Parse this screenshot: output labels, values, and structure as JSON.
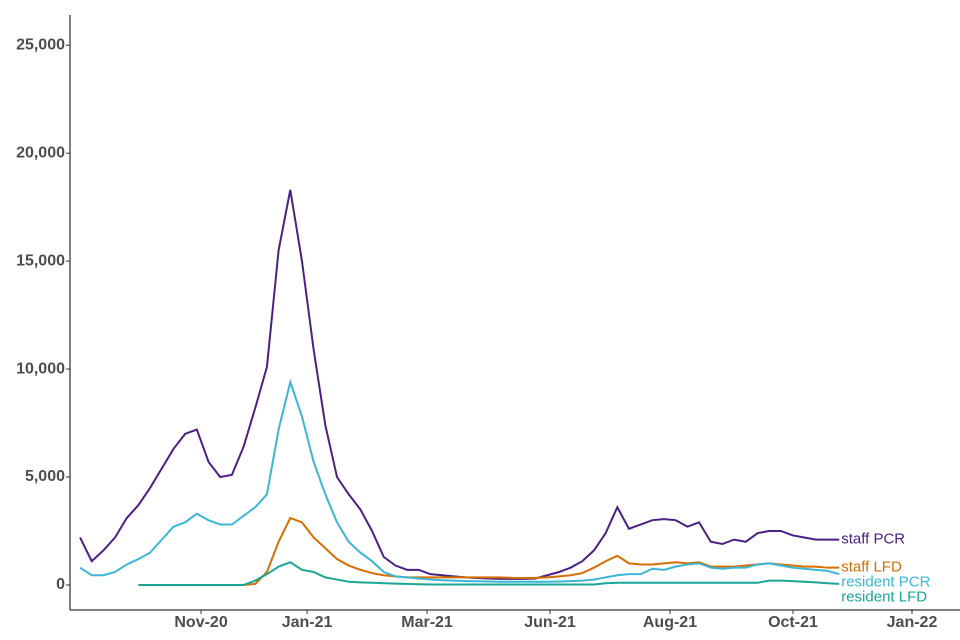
{
  "chart_data": {
    "type": "line",
    "x": [
      0,
      1,
      2,
      3,
      4,
      5,
      6,
      7,
      8,
      9,
      10,
      11,
      12,
      13,
      14,
      15,
      16,
      17,
      18,
      19,
      20,
      21,
      22,
      23,
      24,
      25,
      26,
      27,
      28,
      29,
      30,
      31,
      32,
      33,
      34,
      35,
      36,
      37,
      38,
      39,
      40,
      41,
      42,
      43,
      44,
      45,
      46,
      47,
      48,
      49,
      50,
      51,
      52,
      53,
      54,
      55,
      56,
      57,
      58,
      59,
      60,
      61,
      62,
      63,
      64,
      65
    ],
    "series": [
      {
        "name": "staff PCR",
        "color": "#4b2183",
        "values": [
          2200,
          1100,
          1600,
          2200,
          3100,
          3700,
          4500,
          5400,
          6300,
          7000,
          7200,
          5700,
          5000,
          5100,
          6400,
          8200,
          10100,
          15500,
          18300,
          15000,
          10900,
          7400,
          5000,
          4200,
          3500,
          2500,
          1300,
          900,
          700,
          700,
          500,
          450,
          400,
          350,
          320,
          300,
          280,
          280,
          280,
          300,
          450,
          600,
          800,
          1100,
          1600,
          2400,
          3600,
          2600,
          2800,
          3000,
          3050,
          3000,
          2700,
          2900,
          2000,
          1900,
          2100,
          2000,
          2400,
          2500,
          2500,
          2300,
          2200,
          2100,
          2100,
          2100
        ]
      },
      {
        "name": "staff LFD",
        "color": "#d46f00",
        "values": [
          null,
          null,
          null,
          null,
          null,
          0,
          0,
          0,
          0,
          0,
          0,
          0,
          0,
          0,
          0,
          50,
          600,
          2000,
          3100,
          2900,
          2200,
          1700,
          1200,
          900,
          700,
          550,
          450,
          400,
          350,
          350,
          350,
          350,
          350,
          350,
          350,
          350,
          350,
          330,
          320,
          330,
          350,
          400,
          450,
          550,
          800,
          1100,
          1350,
          1000,
          950,
          950,
          1000,
          1050,
          1000,
          1050,
          850,
          850,
          850,
          900,
          950,
          1000,
          950,
          900,
          850,
          850,
          800,
          800
        ]
      },
      {
        "name": "resident PCR",
        "color": "#3bb6d6",
        "values": [
          800,
          450,
          450,
          600,
          950,
          1200,
          1500,
          2100,
          2700,
          2900,
          3300,
          3000,
          2800,
          2800,
          3200,
          3600,
          4200,
          7200,
          9400,
          7800,
          5700,
          4200,
          2900,
          2000,
          1500,
          1100,
          600,
          400,
          350,
          300,
          250,
          220,
          200,
          180,
          170,
          160,
          150,
          150,
          150,
          150,
          150,
          160,
          180,
          200,
          250,
          350,
          450,
          500,
          500,
          750,
          700,
          850,
          950,
          1000,
          800,
          750,
          800,
          800,
          950,
          1000,
          900,
          800,
          750,
          700,
          650,
          500
        ]
      },
      {
        "name": "resident LFD",
        "color": "#1aa596",
        "values": [
          null,
          null,
          null,
          null,
          null,
          0,
          0,
          0,
          0,
          0,
          0,
          0,
          0,
          0,
          0,
          200,
          500,
          850,
          1050,
          700,
          600,
          350,
          250,
          150,
          120,
          100,
          80,
          60,
          50,
          30,
          20,
          20,
          20,
          20,
          20,
          20,
          20,
          20,
          20,
          20,
          20,
          20,
          20,
          20,
          20,
          80,
          100,
          100,
          100,
          100,
          100,
          100,
          100,
          100,
          100,
          100,
          100,
          100,
          100,
          200,
          200,
          180,
          150,
          120,
          80,
          50
        ]
      }
    ],
    "xlim": [
      -0.86,
      75.34
    ],
    "xticks": [
      {
        "value": 10.36,
        "label": "Nov-20"
      },
      {
        "value": 19.44,
        "label": "Jan-21"
      },
      {
        "value": 29.71,
        "label": "Mar-21"
      },
      {
        "value": 40.24,
        "label": "Jun-21"
      },
      {
        "value": 50.51,
        "label": "Aug-21"
      },
      {
        "value": 61.04,
        "label": "Oct-21"
      },
      {
        "value": 71.23,
        "label": "Jan-22"
      }
    ],
    "ylim": [
      -1160,
      26400
    ],
    "yticks": [
      0,
      {
        "value": 5000,
        "label": "5,000"
      },
      {
        "value": 10000,
        "label": "10,000"
      },
      {
        "value": 15000,
        "label": "15,000"
      },
      {
        "value": 20000,
        "label": "20,000"
      },
      {
        "value": 25000,
        "label": "25,000"
      }
    ]
  }
}
